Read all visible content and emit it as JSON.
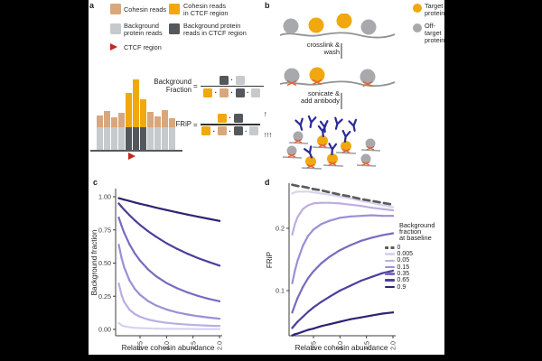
{
  "colors": {
    "canvas": "#000000",
    "paper": "#ffffff",
    "tan": "#d9a77c",
    "orange": "#f0a80e",
    "light_gray": "#c6cacc",
    "dark_gray": "#54585c",
    "red": "#c4271b",
    "crosslink_red": "#e0603a",
    "antibody_blue": "#2b2a96",
    "genome_gray": "#909497",
    "gray_protein": "#a7a9ac"
  },
  "panels": {
    "a": {
      "label": "a",
      "legend": [
        {
          "label": "Cohesin reads"
        },
        {
          "label": "Cohesin reads\nin CTCF region"
        },
        {
          "label": "Background\nprotein reads"
        },
        {
          "label": "Background protein\nreads in CTCF region"
        },
        {
          "label": "CTCF region"
        }
      ],
      "pileup": {
        "bars": [
          {
            "type": "flank",
            "base": 25,
            "cap": 13
          },
          {
            "type": "flank",
            "base": 25,
            "cap": 18
          },
          {
            "type": "flank",
            "base": 25,
            "cap": 11
          },
          {
            "type": "flank",
            "base": 25,
            "cap": 16
          },
          {
            "type": "peak",
            "base": 25,
            "cap": 38
          },
          {
            "type": "peak",
            "base": 25,
            "cap": 53
          },
          {
            "type": "peak",
            "base": 25,
            "cap": 31
          },
          {
            "type": "flank",
            "base": 25,
            "cap": 17
          },
          {
            "type": "flank",
            "base": 25,
            "cap": 12
          },
          {
            "type": "flank",
            "base": 25,
            "cap": 19
          },
          {
            "type": "flank",
            "base": 25,
            "cap": 10
          }
        ]
      },
      "formulas": {
        "background_fraction": {
          "label": "Background\nFraction",
          "equals": "="
        },
        "frip": {
          "label": "FRiP",
          "equals": "=",
          "numerator_arrow": "↑",
          "denominator_arrow": "↑↑↑"
        },
        "dot": "·"
      }
    },
    "b": {
      "label": "b",
      "legend": [
        {
          "label": "Target\nprotein"
        },
        {
          "label": "Off-target\nprotein"
        }
      ],
      "steps": [
        {
          "label": "crosslink &\nwash"
        },
        {
          "label": "sonicate &\nadd antibody"
        }
      ]
    },
    "c": {
      "label": "c"
    },
    "d": {
      "label": "d"
    }
  },
  "legend": {
    "title": "Background\nfraction\nat baseline",
    "entries": [
      {
        "label": "0",
        "color": "#5b5b5b",
        "dashed": true
      },
      {
        "label": "0.005",
        "color": "#d9d3ee",
        "dashed": false
      },
      {
        "label": "0.05",
        "color": "#bcaee2",
        "dashed": false
      },
      {
        "label": "0.15",
        "color": "#9e8ed5",
        "dashed": false
      },
      {
        "label": "0.35",
        "color": "#7b6abf",
        "dashed": false
      },
      {
        "label": "0.65",
        "color": "#4c3f9d",
        "dashed": false
      },
      {
        "label": "0.9",
        "color": "#2c2573",
        "dashed": false
      }
    ]
  },
  "chart_data": [
    {
      "id": "c",
      "type": "line",
      "title": "",
      "xlabel": "Relative cohesin abundance",
      "ylabel": "Background fraction",
      "xlim": [
        0.05,
        2.05
      ],
      "ylim": [
        0,
        1.05
      ],
      "grid": false,
      "x": [
        0.1,
        0.15,
        0.2,
        0.3,
        0.4,
        0.5,
        0.65,
        0.8,
        1.0,
        1.2,
        1.4,
        1.6,
        1.8,
        2.0
      ],
      "xticks": [
        {
          "v": 0.5,
          "label": "0.5"
        },
        {
          "v": 1.0,
          "label": "1.0"
        },
        {
          "v": 1.5,
          "label": "1.5"
        },
        {
          "v": 2.0,
          "label": "2.0"
        }
      ],
      "yticks": [
        {
          "v": 0,
          "label": "0.00"
        },
        {
          "v": 0.25,
          "label": "0.25"
        },
        {
          "v": 0.5,
          "label": "0.50"
        },
        {
          "v": 0.75,
          "label": "0.75"
        },
        {
          "v": 1.0,
          "label": "1.00"
        }
      ],
      "series": [
        {
          "name": "0.005",
          "color": "#d9d3ee",
          "dashed": false,
          "values": [
            0.048,
            0.032,
            0.024,
            0.016,
            0.012,
            0.01,
            0.008,
            0.006,
            0.005,
            0.004,
            0.004,
            0.003,
            0.003,
            0.003
          ]
        },
        {
          "name": "0.05",
          "color": "#bcaee2",
          "dashed": false,
          "values": [
            0.345,
            0.26,
            0.208,
            0.149,
            0.116,
            0.095,
            0.075,
            0.062,
            0.05,
            0.042,
            0.036,
            0.032,
            0.028,
            0.026
          ]
        },
        {
          "name": "0.15",
          "color": "#9e8ed5",
          "dashed": false,
          "values": [
            0.638,
            0.541,
            0.469,
            0.37,
            0.306,
            0.261,
            0.214,
            0.181,
            0.15,
            0.128,
            0.112,
            0.099,
            0.089,
            0.081
          ]
        },
        {
          "name": "0.35",
          "color": "#7b6abf",
          "dashed": false,
          "values": [
            0.843,
            0.782,
            0.729,
            0.642,
            0.574,
            0.519,
            0.453,
            0.402,
            0.35,
            0.31,
            0.278,
            0.252,
            0.23,
            0.212
          ]
        },
        {
          "name": "0.65",
          "color": "#4c3f9d",
          "dashed": false,
          "values": [
            0.949,
            0.925,
            0.903,
            0.861,
            0.823,
            0.788,
            0.741,
            0.699,
            0.65,
            0.607,
            0.57,
            0.537,
            0.508,
            0.481
          ]
        },
        {
          "name": "0.9",
          "color": "#2c2573",
          "dashed": false,
          "values": [
            0.989,
            0.984,
            0.978,
            0.968,
            0.957,
            0.947,
            0.933,
            0.918,
            0.9,
            0.882,
            0.865,
            0.849,
            0.833,
            0.818
          ]
        }
      ]
    },
    {
      "id": "d",
      "type": "line",
      "title": "",
      "xlabel": "Relative cohesin abundance",
      "ylabel": "FRiP",
      "xlim": [
        0.05,
        2.05
      ],
      "ylim": [
        0.02,
        0.28
      ],
      "grid": false,
      "x": [
        0.1,
        0.15,
        0.2,
        0.3,
        0.4,
        0.5,
        0.65,
        0.8,
        1.0,
        1.2,
        1.4,
        1.6,
        1.8,
        2.0
      ],
      "xticks": [
        {
          "v": 0.5,
          "label": "0.5"
        },
        {
          "v": 1.0,
          "label": "1.0"
        },
        {
          "v": 1.5,
          "label": "1.5"
        },
        {
          "v": 2.0,
          "label": "2.0"
        }
      ],
      "yticks": [
        {
          "v": 0.1,
          "label": "0.1"
        },
        {
          "v": 0.2,
          "label": "0.2"
        }
      ],
      "series": [
        {
          "name": "0.005",
          "color": "#d9d3ee",
          "dashed": false,
          "values": [
            0.256,
            0.258,
            0.259,
            0.259,
            0.259,
            0.258,
            0.256,
            0.254,
            0.251,
            0.248,
            0.244,
            0.241,
            0.237,
            0.234
          ]
        },
        {
          "name": "0.05",
          "color": "#bcaee2",
          "dashed": false,
          "values": [
            0.19,
            0.207,
            0.218,
            0.231,
            0.237,
            0.24,
            0.241,
            0.241,
            0.24,
            0.238,
            0.236,
            0.233,
            0.231,
            0.229
          ]
        },
        {
          "name": "0.15",
          "color": "#9e8ed5",
          "dashed": false,
          "values": [
            0.112,
            0.132,
            0.148,
            0.172,
            0.188,
            0.198,
            0.207,
            0.212,
            0.217,
            0.219,
            0.22,
            0.221,
            0.22,
            0.22
          ]
        },
        {
          "name": "0.35",
          "color": "#7b6abf",
          "dashed": false,
          "values": [
            0.065,
            0.077,
            0.088,
            0.106,
            0.12,
            0.131,
            0.144,
            0.154,
            0.165,
            0.173,
            0.18,
            0.185,
            0.189,
            0.192
          ]
        },
        {
          "name": "0.65",
          "color": "#4c3f9d",
          "dashed": false,
          "values": [
            0.04,
            0.045,
            0.05,
            0.058,
            0.066,
            0.073,
            0.082,
            0.09,
            0.1,
            0.108,
            0.116,
            0.122,
            0.128,
            0.132
          ]
        },
        {
          "name": "0.9",
          "color": "#2c2573",
          "dashed": false,
          "values": [
            0.028,
            0.03,
            0.031,
            0.034,
            0.037,
            0.039,
            0.043,
            0.046,
            0.05,
            0.054,
            0.057,
            0.06,
            0.063,
            0.065
          ]
        },
        {
          "name": "0",
          "color": "#5b5b5b",
          "dashed": true,
          "values": [
            0.27,
            0.269,
            0.268,
            0.267,
            0.265,
            0.263,
            0.261,
            0.258,
            0.254,
            0.251,
            0.247,
            0.244,
            0.241,
            0.238
          ]
        }
      ]
    }
  ]
}
